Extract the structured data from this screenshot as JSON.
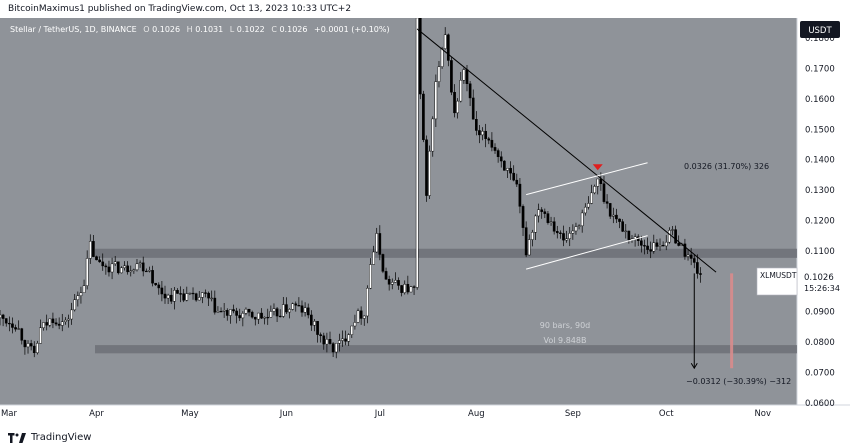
{
  "caption": "BitcoinMaximus1 published on TradingView.com, Oct 13, 2023 10:33 UTC+2",
  "brand": "TradingView",
  "brand_logo_text": "TV",
  "currency_button": "USDT",
  "legend": {
    "symbol": "Stellar / TetherUS, 1D, BINANCE",
    "o_label": "O",
    "o": "0.1026",
    "h_label": "H",
    "h": "0.1031",
    "l_label": "L",
    "l": "0.1022",
    "c_label": "C",
    "c": "0.1026",
    "change": "+0.0001 (+0.10%)"
  },
  "colors": {
    "background": "#8f9399",
    "up": "#ffffff",
    "down": "#000000",
    "zone": "#6d7077",
    "channel": "#ffffff",
    "trendline": "#000000",
    "marker": "#e01e1e",
    "projection": "#d98c8c"
  },
  "chart_data": {
    "type": "candlestick",
    "x_ticks": [
      {
        "label": "Mar",
        "date": "2023-03-01"
      },
      {
        "label": "Apr",
        "date": "2023-04-01"
      },
      {
        "label": "May",
        "date": "2023-05-01"
      },
      {
        "label": "Jun",
        "date": "2023-06-01"
      },
      {
        "label": "Jul",
        "date": "2023-07-01"
      },
      {
        "label": "Aug",
        "date": "2023-08-01"
      },
      {
        "label": "Sep",
        "date": "2023-09-01"
      },
      {
        "label": "Oct",
        "date": "2023-10-01"
      },
      {
        "label": "Nov",
        "date": "2023-11-01"
      }
    ],
    "x_range": [
      "2023-03-01",
      "2023-11-12"
    ],
    "y_range": [
      0.0593,
      0.1866
    ],
    "y_ticks": [
      "0.1800",
      "0.1700",
      "0.1600",
      "0.1500",
      "0.1400",
      "0.1300",
      "0.1200",
      "0.1100",
      "0.1000",
      "0.0900",
      "0.0800",
      "0.0700",
      "0.0600"
    ],
    "y_tick_values": [
      0.18,
      0.17,
      0.16,
      0.15,
      0.14,
      0.13,
      0.12,
      0.11,
      0.1,
      0.09,
      0.08,
      0.07,
      0.06
    ],
    "price_label": {
      "symbol": "XLMUSDT",
      "price": "0.1026",
      "countdown": "15:26:34"
    },
    "series_path": [
      [
        "2023-03-01",
        0.088
      ],
      [
        "2023-03-06",
        0.086
      ],
      [
        "2023-03-10",
        0.078
      ],
      [
        "2023-03-12",
        0.076
      ],
      [
        "2023-03-14",
        0.084
      ],
      [
        "2023-03-18",
        0.088
      ],
      [
        "2023-03-22",
        0.086
      ],
      [
        "2023-03-25",
        0.093
      ],
      [
        "2023-03-28",
        0.1
      ],
      [
        "2023-03-30",
        0.112
      ],
      [
        "2023-04-01",
        0.106
      ],
      [
        "2023-04-05",
        0.105
      ],
      [
        "2023-04-10",
        0.104
      ],
      [
        "2023-04-14",
        0.106
      ],
      [
        "2023-04-18",
        0.104
      ],
      [
        "2023-04-20",
        0.098
      ],
      [
        "2023-04-24",
        0.095
      ],
      [
        "2023-04-28",
        0.096
      ],
      [
        "2023-05-02",
        0.094
      ],
      [
        "2023-05-06",
        0.095
      ],
      [
        "2023-05-10",
        0.09
      ],
      [
        "2023-05-14",
        0.089
      ],
      [
        "2023-05-18",
        0.089
      ],
      [
        "2023-05-22",
        0.0885
      ],
      [
        "2023-05-26",
        0.088
      ],
      [
        "2023-05-30",
        0.09
      ],
      [
        "2023-06-03",
        0.092
      ],
      [
        "2023-06-07",
        0.09
      ],
      [
        "2023-06-10",
        0.085
      ],
      [
        "2023-06-13",
        0.08
      ],
      [
        "2023-06-16",
        0.078
      ],
      [
        "2023-06-19",
        0.08
      ],
      [
        "2023-06-23",
        0.088
      ],
      [
        "2023-06-26",
        0.09
      ],
      [
        "2023-06-28",
        0.106
      ],
      [
        "2023-06-30",
        0.114
      ],
      [
        "2023-07-03",
        0.1
      ],
      [
        "2023-07-08",
        0.098
      ],
      [
        "2023-07-12",
        0.097
      ],
      [
        "2023-07-13",
        0.186
      ],
      [
        "2023-07-14",
        0.16
      ],
      [
        "2023-07-16",
        0.13
      ],
      [
        "2023-07-19",
        0.165
      ],
      [
        "2023-07-22",
        0.18
      ],
      [
        "2023-07-25",
        0.155
      ],
      [
        "2023-07-28",
        0.17
      ],
      [
        "2023-08-01",
        0.148
      ],
      [
        "2023-08-05",
        0.147
      ],
      [
        "2023-08-10",
        0.138
      ],
      [
        "2023-08-14",
        0.13
      ],
      [
        "2023-08-17",
        0.11
      ],
      [
        "2023-08-21",
        0.125
      ],
      [
        "2023-08-25",
        0.12
      ],
      [
        "2023-08-29",
        0.113
      ],
      [
        "2023-09-02",
        0.118
      ],
      [
        "2023-09-06",
        0.125
      ],
      [
        "2023-09-09",
        0.134
      ],
      [
        "2023-09-12",
        0.125
      ],
      [
        "2023-09-15",
        0.12
      ],
      [
        "2023-09-19",
        0.115
      ],
      [
        "2023-09-22",
        0.113
      ],
      [
        "2023-09-26",
        0.111
      ],
      [
        "2023-09-30",
        0.113
      ],
      [
        "2023-10-03",
        0.116
      ],
      [
        "2023-10-06",
        0.111
      ],
      [
        "2023-10-09",
        0.107
      ],
      [
        "2023-10-12",
        0.1026
      ]
    ],
    "support_zones": [
      {
        "low": 0.1077,
        "high": 0.1107
      },
      {
        "low": 0.0763,
        "high": 0.079
      }
    ],
    "trendline": [
      [
        "2023-07-13",
        0.183
      ],
      [
        "2023-10-17",
        0.103
      ]
    ],
    "channel_upper": [
      [
        "2023-08-17",
        0.1285
      ],
      [
        "2023-09-25",
        0.139
      ]
    ],
    "channel_lower": [
      [
        "2023-08-17",
        0.104
      ],
      [
        "2023-09-25",
        0.115
      ]
    ],
    "marker_point": [
      "2023-09-09",
      0.1365
    ],
    "measure_up": {
      "from": [
        "2023-09-25",
        0.139
      ],
      "label": "0.0326 (31.70%) 326"
    },
    "measure_down": {
      "x": "2023-10-10",
      "from": 0.1026,
      "to": 0.0714,
      "label": "−0.0312 (−30.39%) −312"
    },
    "projection_bar": {
      "x": "2023-10-22",
      "from": 0.1026,
      "to": 0.0714
    },
    "info_text": {
      "bars": "90 bars, 90d",
      "vol": "Vol 9.848B"
    }
  }
}
